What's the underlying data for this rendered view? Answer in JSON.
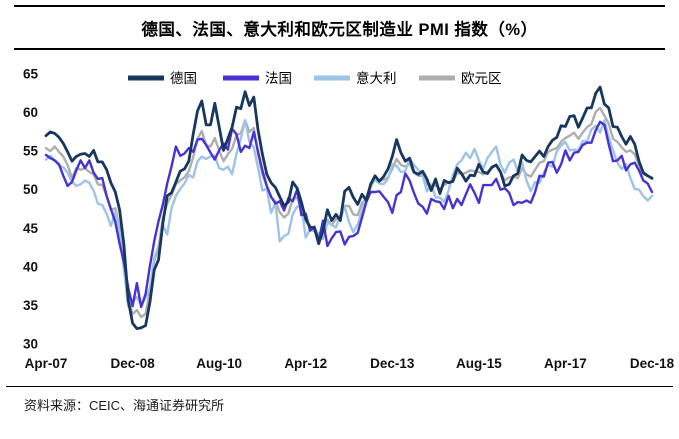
{
  "title": "德国、法国、意大利和欧元区制造业 PMI 指数（%）",
  "source": "资料来源：CEIC、海通证券研究所",
  "chart_data": {
    "type": "line",
    "frequency": "monthly",
    "x_start": "Apr-07",
    "x_end": "Dec-18",
    "x_tick_labels": [
      "Apr-07",
      "Dec-08",
      "Aug-10",
      "Apr-12",
      "Dec-13",
      "Aug-15",
      "Apr-17",
      "Dec-18"
    ],
    "x_tick_indices": [
      0,
      20,
      40,
      60,
      80,
      100,
      120,
      140
    ],
    "y_ticks": [
      30,
      35,
      40,
      45,
      50,
      55,
      60,
      65
    ],
    "ylim": [
      30,
      65
    ],
    "grid": false,
    "legend_position": "top",
    "series": [
      {
        "name": "德国",
        "color": "#17375E",
        "values": [
          57.0,
          57.5,
          57.3,
          56.8,
          56.0,
          54.9,
          53.7,
          54.3,
          54.6,
          54.7,
          54.3,
          55.1,
          53.6,
          53.6,
          52.6,
          50.9,
          49.7,
          47.4,
          42.9,
          35.7,
          32.7,
          32.0,
          32.1,
          32.4,
          35.4,
          39.6,
          40.9,
          45.7,
          49.2,
          49.6,
          51.0,
          52.4,
          52.7,
          53.7,
          57.2,
          60.2,
          61.5,
          58.4,
          58.4,
          61.2,
          58.2,
          55.1,
          56.6,
          58.1,
          60.7,
          60.5,
          62.7,
          60.9,
          62.0,
          57.7,
          54.6,
          52.0,
          50.9,
          50.3,
          49.1,
          47.9,
          48.4,
          51.0,
          50.2,
          48.4,
          46.2,
          45.2,
          45.0,
          43.0,
          44.7,
          47.4,
          46.0,
          46.8,
          46.0,
          49.8,
          50.3,
          49.0,
          48.1,
          49.4,
          48.6,
          50.7,
          51.8,
          51.1,
          51.7,
          52.7,
          54.3,
          56.5,
          54.8,
          53.7,
          54.1,
          52.3,
          52.0,
          52.4,
          51.4,
          49.9,
          51.4,
          49.5,
          51.2,
          50.9,
          51.1,
          52.8,
          52.1,
          51.1,
          51.9,
          51.8,
          53.3,
          52.3,
          52.1,
          52.9,
          53.2,
          52.3,
          50.5,
          50.7,
          51.8,
          52.1,
          54.5,
          53.8,
          53.6,
          54.3,
          55.0,
          54.3,
          55.6,
          56.4,
          56.8,
          58.3,
          58.2,
          59.5,
          59.6,
          58.1,
          59.3,
          60.6,
          60.6,
          62.5,
          63.3,
          61.1,
          60.6,
          58.2,
          58.1,
          56.9,
          55.9,
          56.9,
          55.9,
          53.7,
          52.2,
          51.8,
          51.5
        ]
      },
      {
        "name": "法国",
        "color": "#4733D1",
        "values": [
          54.5,
          54.1,
          53.8,
          53.3,
          51.8,
          50.5,
          51.0,
          52.5,
          53.8,
          52.8,
          53.8,
          52.2,
          51.4,
          51.5,
          49.2,
          47.5,
          45.8,
          43.0,
          40.6,
          37.3,
          34.9,
          37.9,
          34.8,
          36.5,
          40.1,
          43.3,
          45.9,
          48.1,
          50.8,
          53.0,
          55.6,
          54.4,
          54.7,
          55.4,
          54.9,
          56.5,
          56.6,
          55.8,
          54.8,
          53.9,
          55.1,
          56.0,
          55.2,
          57.9,
          57.2,
          54.9,
          55.7,
          55.4,
          57.5,
          54.9,
          52.5,
          50.5,
          49.1,
          48.2,
          48.5,
          47.3,
          48.9,
          48.5,
          50.0,
          46.7,
          46.9,
          44.7,
          45.2,
          43.4,
          46.0,
          42.7,
          43.7,
          44.5,
          44.6,
          42.9,
          43.9,
          44.0,
          44.4,
          46.4,
          48.4,
          49.7,
          49.7,
          49.8,
          49.1,
          48.4,
          47.0,
          49.3,
          49.7,
          52.1,
          51.2,
          49.6,
          48.2,
          47.8,
          46.9,
          48.8,
          48.5,
          48.4,
          47.5,
          49.2,
          47.6,
          48.8,
          48.0,
          49.4,
          50.7,
          49.6,
          48.3,
          50.6,
          50.6,
          50.6,
          51.4,
          50.0,
          50.2,
          49.6,
          48.0,
          48.4,
          48.3,
          48.6,
          48.3,
          49.7,
          51.8,
          51.7,
          53.5,
          53.6,
          52.2,
          53.3,
          55.1,
          53.8,
          54.8,
          54.9,
          55.8,
          56.1,
          56.1,
          57.7,
          58.8,
          58.4,
          55.9,
          53.7,
          53.8,
          54.4,
          52.5,
          53.3,
          53.5,
          52.5,
          51.2,
          50.8,
          49.7
        ]
      },
      {
        "name": "意大利",
        "color": "#9DC3E6",
        "values": [
          53.9,
          54.4,
          53.8,
          53.1,
          52.9,
          52.2,
          51.0,
          50.5,
          50.7,
          51.2,
          50.9,
          49.9,
          48.2,
          48.0,
          46.9,
          45.3,
          47.1,
          44.4,
          39.7,
          34.9,
          35.5,
          36.1,
          35.0,
          36.0,
          37.2,
          41.1,
          42.7,
          45.4,
          44.2,
          47.6,
          49.2,
          50.1,
          50.8,
          51.9,
          51.6,
          53.7,
          54.3,
          54.0,
          54.3,
          54.4,
          52.8,
          52.6,
          53.0,
          52.0,
          54.7,
          56.6,
          59.0,
          56.2,
          55.5,
          52.8,
          49.9,
          50.1,
          47.0,
          48.3,
          43.3,
          44.0,
          44.3,
          46.8,
          47.8,
          47.9,
          43.8,
          44.8,
          44.6,
          44.3,
          43.6,
          45.7,
          45.5,
          45.1,
          46.7,
          47.8,
          45.8,
          44.5,
          45.5,
          47.3,
          49.1,
          50.4,
          51.3,
          50.8,
          50.7,
          51.4,
          53.3,
          53.1,
          52.3,
          52.4,
          54.0,
          53.2,
          52.6,
          51.9,
          49.8,
          50.7,
          49.0,
          49.0,
          48.4,
          49.9,
          51.9,
          53.3,
          53.8,
          54.8,
          54.1,
          55.3,
          53.8,
          52.7,
          54.1,
          54.9,
          55.6,
          53.2,
          52.2,
          53.5,
          53.9,
          52.4,
          53.5,
          51.2,
          49.8,
          51.0,
          50.9,
          52.2,
          53.2,
          53.0,
          55.0,
          55.7,
          56.2,
          55.1,
          55.2,
          55.1,
          56.3,
          56.3,
          57.8,
          58.3,
          57.4,
          59.0,
          56.8,
          55.1,
          53.5,
          52.7,
          53.3,
          51.5,
          50.1,
          50.0,
          49.2,
          48.6,
          49.2
        ]
      },
      {
        "name": "欧元区",
        "color": "#AEAEAE",
        "values": [
          55.4,
          55.0,
          55.6,
          54.9,
          54.3,
          53.2,
          51.5,
          52.8,
          52.6,
          52.8,
          52.3,
          52.0,
          50.7,
          50.6,
          49.2,
          47.4,
          47.6,
          45.0,
          41.1,
          35.6,
          33.9,
          34.4,
          33.5,
          33.9,
          36.8,
          40.7,
          42.6,
          46.3,
          48.2,
          49.3,
          50.7,
          51.2,
          51.6,
          52.4,
          54.2,
          56.6,
          57.6,
          55.8,
          55.6,
          56.7,
          55.1,
          53.7,
          54.6,
          55.3,
          57.1,
          57.3,
          59.0,
          57.5,
          58.0,
          54.6,
          52.0,
          50.4,
          49.0,
          48.5,
          47.1,
          46.4,
          46.9,
          48.8,
          49.0,
          47.7,
          45.9,
          45.1,
          45.1,
          44.0,
          45.1,
          46.1,
          45.4,
          46.2,
          46.1,
          47.9,
          47.9,
          46.8,
          46.7,
          48.3,
          48.8,
          50.3,
          51.4,
          51.1,
          51.3,
          51.6,
          52.7,
          54.0,
          53.2,
          53.0,
          53.4,
          52.2,
          51.8,
          51.8,
          50.7,
          50.3,
          50.6,
          50.1,
          50.6,
          51.0,
          51.0,
          52.2,
          52.0,
          52.2,
          52.5,
          52.4,
          52.3,
          52.0,
          52.3,
          52.8,
          53.2,
          52.3,
          51.2,
          51.6,
          51.7,
          51.5,
          52.8,
          52.0,
          51.7,
          52.6,
          53.5,
          53.7,
          54.9,
          55.2,
          55.4,
          56.2,
          56.7,
          57.0,
          57.4,
          56.6,
          57.4,
          58.1,
          58.5,
          60.1,
          60.6,
          59.6,
          58.6,
          56.6,
          56.2,
          55.5,
          54.9,
          55.1,
          54.6,
          53.2,
          52.0,
          51.8,
          51.4
        ]
      }
    ]
  }
}
